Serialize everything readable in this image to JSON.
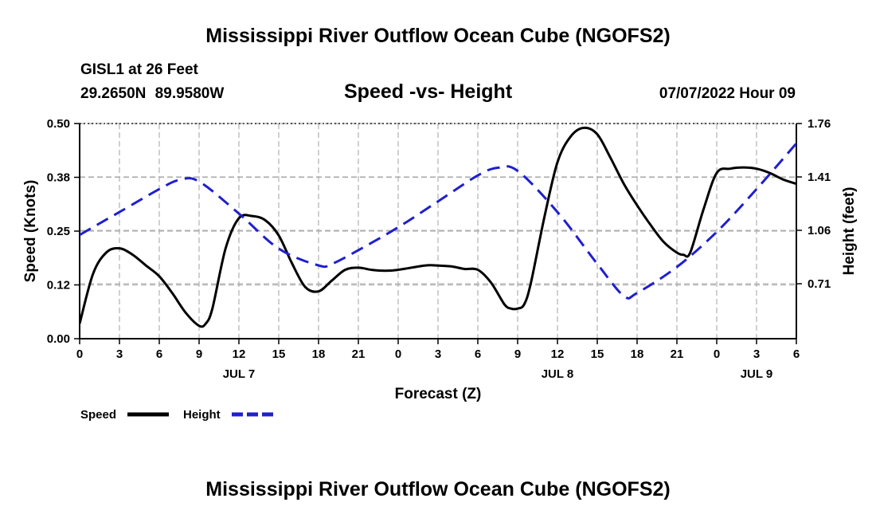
{
  "header": {
    "title": "Mississippi River Outflow Ocean Cube (NGOFS2)",
    "station": "GISL1 at 26 Feet",
    "latlon": "29.2650N  89.9580W",
    "subtitle": "Speed -vs- Height",
    "datetime": "07/07/2022 Hour 09"
  },
  "footer": {
    "title": "Mississippi River Outflow Ocean Cube (NGOFS2)"
  },
  "colors": {
    "speed": "#000000",
    "height": "#1f1fcf",
    "grid": "#b0b0b0"
  },
  "chart_data": {
    "type": "line",
    "title": "Speed -vs- Height",
    "xlabel": "Forecast (Z)",
    "ylabel": "Speed (Knots)",
    "y2label": "Height (feet)",
    "xlim": [
      0,
      54
    ],
    "ylim": [
      0,
      0.5
    ],
    "y2lim": [
      0.35,
      1.76
    ],
    "x_ticks": [
      0,
      3,
      6,
      9,
      12,
      15,
      18,
      21,
      24,
      27,
      30,
      33,
      36,
      39,
      42,
      45,
      48,
      51,
      54
    ],
    "x_tick_labels": [
      "0",
      "3",
      "6",
      "9",
      "12",
      "15",
      "18",
      "21",
      "0",
      "3",
      "6",
      "9",
      "12",
      "15",
      "18",
      "21",
      "0",
      "3",
      "6"
    ],
    "day_labels": [
      {
        "label": "JUL 7",
        "x": 12
      },
      {
        "label": "JUL 8",
        "x": 36
      },
      {
        "label": "JUL 9",
        "x": 51
      }
    ],
    "y_ticks": [
      0,
      0.125,
      0.25,
      0.375,
      0.5
    ],
    "y_tick_labels": [
      "0.00",
      "0.12",
      "0.25",
      "0.38",
      "0.50"
    ],
    "y2_ticks": [
      0.71,
      1.06,
      1.41,
      1.76
    ],
    "y2_tick_labels": [
      "0.71",
      "1.06",
      "1.41",
      "1.76"
    ],
    "legend": [
      {
        "label": "Speed",
        "series": "speed"
      },
      {
        "label": "Height",
        "series": "height"
      }
    ],
    "series": [
      {
        "name": "Speed",
        "axis": "left",
        "style": "solid",
        "x": [
          0,
          1,
          2,
          3,
          4,
          5,
          6,
          7,
          8,
          9,
          9.5,
          10,
          11,
          12,
          13,
          14,
          15,
          16,
          17,
          18,
          19,
          20,
          21,
          22,
          23,
          24,
          26,
          27,
          28,
          29,
          30,
          31,
          32,
          32.5,
          33,
          33.5,
          34,
          35,
          36,
          37,
          38,
          39,
          40,
          41,
          42,
          43,
          44,
          45,
          45.5,
          46,
          47,
          48,
          49,
          50,
          51,
          52,
          53,
          54
        ],
        "y": [
          0.035,
          0.15,
          0.2,
          0.21,
          0.195,
          0.17,
          0.145,
          0.105,
          0.06,
          0.03,
          0.035,
          0.07,
          0.21,
          0.28,
          0.285,
          0.275,
          0.24,
          0.175,
          0.12,
          0.11,
          0.135,
          0.16,
          0.165,
          0.16,
          0.158,
          0.16,
          0.17,
          0.17,
          0.168,
          0.162,
          0.16,
          0.13,
          0.08,
          0.07,
          0.07,
          0.08,
          0.13,
          0.28,
          0.41,
          0.47,
          0.49,
          0.475,
          0.42,
          0.36,
          0.31,
          0.265,
          0.225,
          0.2,
          0.195,
          0.2,
          0.3,
          0.385,
          0.395,
          0.398,
          0.395,
          0.385,
          0.37,
          0.36
        ]
      },
      {
        "name": "Height",
        "axis": "right",
        "style": "dashed",
        "x": [
          0,
          3,
          6,
          7.5,
          9,
          12,
          15,
          18,
          19,
          21,
          24,
          27,
          30,
          31.5,
          33,
          36,
          39,
          41,
          42,
          45,
          48,
          51,
          54
        ],
        "y": [
          1.03,
          1.18,
          1.33,
          1.39,
          1.38,
          1.17,
          0.94,
          0.83,
          0.84,
          0.93,
          1.08,
          1.25,
          1.42,
          1.47,
          1.45,
          1.18,
          0.84,
          0.63,
          0.65,
          0.82,
          1.05,
          1.33,
          1.63
        ]
      }
    ]
  }
}
